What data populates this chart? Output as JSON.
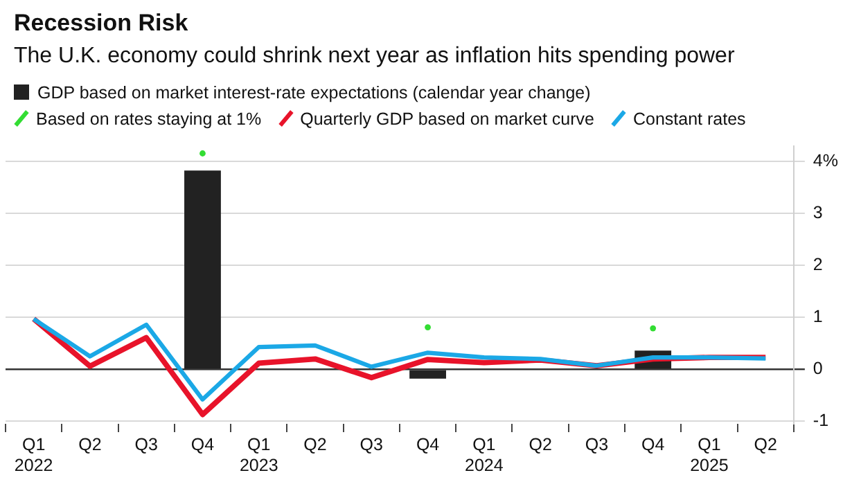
{
  "chart_data": {
    "type": "bar",
    "title": "Recession Risk",
    "subtitle": "The U.K. economy could shrink next year as inflation hits spending power",
    "categories": [
      "Q1\n2022",
      "Q2",
      "Q3",
      "Q4",
      "Q1\n2023",
      "Q2",
      "Q3",
      "Q4",
      "Q1\n2024",
      "Q2",
      "Q3",
      "Q4",
      "Q1\n2025",
      "Q2"
    ],
    "series": [
      {
        "name": "GDP based on market interest-rate expectations (calendar year change)",
        "color": "#222222",
        "values": [
          null,
          null,
          null,
          3.83,
          null,
          null,
          null,
          -0.18,
          null,
          null,
          null,
          0.36,
          null,
          null
        ]
      },
      {
        "name": "Based on rates staying at 1%",
        "type": "scatter",
        "marker": "circle",
        "color": "#33dd33",
        "values": [
          null,
          null,
          null,
          4.16,
          null,
          null,
          null,
          0.81,
          null,
          null,
          null,
          0.79,
          null,
          null
        ]
      },
      {
        "name": "Quarterly GDP based on market curve",
        "type": "line",
        "color": "#e8132a",
        "values": [
          0.97,
          0.06,
          0.61,
          -0.87,
          0.12,
          0.2,
          -0.16,
          0.19,
          0.13,
          0.18,
          0.07,
          0.2,
          0.23,
          0.23
        ]
      },
      {
        "name": "Constant rates",
        "type": "line",
        "color": "#1ba8e6",
        "values": [
          0.97,
          0.25,
          0.86,
          -0.58,
          0.43,
          0.46,
          0.05,
          0.32,
          0.23,
          0.2,
          0.07,
          0.23,
          0.23,
          0.21
        ]
      }
    ],
    "ylim": [
      -1.05,
      4.3
    ],
    "yticks": [
      {
        "value": 4,
        "label": "4%"
      },
      3,
      2,
      1,
      0,
      -1
    ],
    "grid": "y",
    "legend": "top left",
    "marker": "none"
  }
}
